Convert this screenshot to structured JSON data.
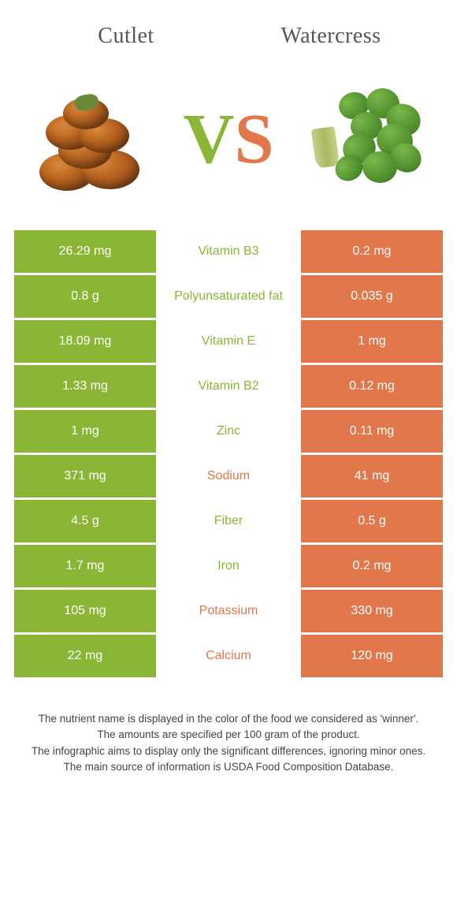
{
  "header": {
    "left_title": "Cutlet",
    "right_title": "Watercress"
  },
  "vs": {
    "v": "V",
    "s": "S"
  },
  "colors": {
    "left": "#8bb635",
    "right": "#e2774b",
    "left_text": "#8bb635",
    "right_text": "#e2774b"
  },
  "rows": [
    {
      "left": "26.29 mg",
      "label": "Vitamin B3",
      "right": "0.2 mg",
      "winner": "left"
    },
    {
      "left": "0.8 g",
      "label": "Polyunsaturated fat",
      "right": "0.035 g",
      "winner": "left"
    },
    {
      "left": "18.09 mg",
      "label": "Vitamin E",
      "right": "1 mg",
      "winner": "left"
    },
    {
      "left": "1.33 mg",
      "label": "Vitamin B2",
      "right": "0.12 mg",
      "winner": "left"
    },
    {
      "left": "1 mg",
      "label": "Zinc",
      "right": "0.11 mg",
      "winner": "left"
    },
    {
      "left": "371 mg",
      "label": "Sodium",
      "right": "41 mg",
      "winner": "right"
    },
    {
      "left": "4.5 g",
      "label": "Fiber",
      "right": "0.5 g",
      "winner": "left"
    },
    {
      "left": "1.7 mg",
      "label": "Iron",
      "right": "0.2 mg",
      "winner": "left"
    },
    {
      "left": "105 mg",
      "label": "Potassium",
      "right": "330 mg",
      "winner": "right"
    },
    {
      "left": "22 mg",
      "label": "Calcium",
      "right": "120 mg",
      "winner": "right"
    }
  ],
  "footer": {
    "line1": "The nutrient name is displayed in the color of the food we considered as 'winner'.",
    "line2": "The amounts are specified per 100 gram of the product.",
    "line3": "The infographic aims to display only the significant differences, ignoring minor ones.",
    "line4": "The main source of information is USDA Food Composition Database."
  }
}
